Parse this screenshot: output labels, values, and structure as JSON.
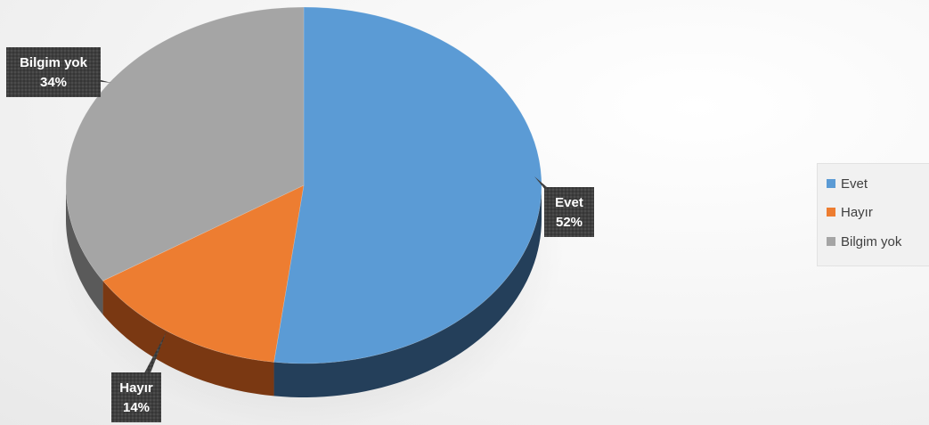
{
  "chart_data": {
    "type": "pie",
    "title": "",
    "slices": [
      {
        "label": "Evet",
        "value": 52,
        "display": "52%",
        "color": "#5b9bd5",
        "side_color": "#243f5a"
      },
      {
        "label": "Hayır",
        "value": 14,
        "display": "14%",
        "color": "#ed7d31",
        "side_color": "#7a3812"
      },
      {
        "label": "Bilgim yok",
        "value": 34,
        "display": "34%",
        "color": "#a5a5a5",
        "side_color": "#5a5a5a"
      }
    ],
    "legend_position": "right",
    "data_labels": "category and percentage, callout boxes",
    "style": "3d"
  }
}
